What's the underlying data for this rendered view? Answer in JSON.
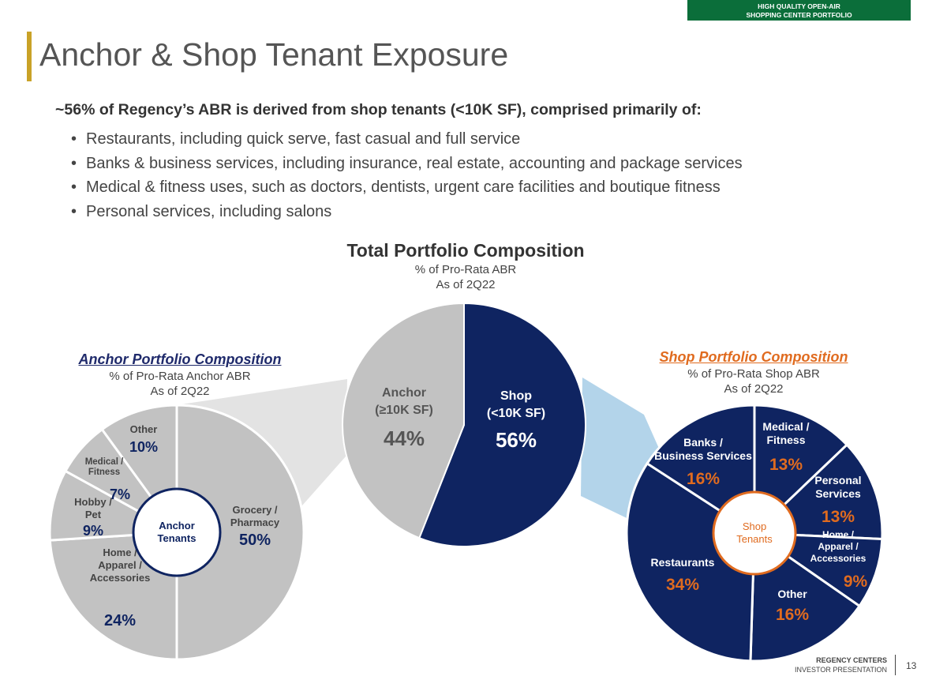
{
  "banner": {
    "line1": "HIGH QUALITY OPEN-AIR",
    "line2": "SHOPPING CENTER PORTFOLIO",
    "color": "#0b6e3a"
  },
  "header": {
    "title": "Anchor & Shop Tenant Exposure"
  },
  "intro": {
    "lead": "~56% of Regency’s ABR is derived from shop tenants (<10K SF), comprised primarily of:",
    "bullets": [
      "Restaurants, including quick serve, fast casual and full service",
      "Banks & business services, including insurance, real estate, accounting and package services",
      "Medical & fitness uses, such as doctors, dentists, urgent care facilities and boutique fitness",
      "Personal services, including salons"
    ]
  },
  "colors": {
    "navy": "#0f2461",
    "gray": "#c2c2c2",
    "orange": "#e06b1f",
    "connector_gray": "#e3e3e3",
    "connector_blue": "#b3d4ea"
  },
  "chart_data": [
    {
      "type": "pie",
      "title": "Total Portfolio Composition",
      "subtitle": [
        "% of Pro-Rata ABR",
        "As of 2Q22"
      ],
      "slices": [
        {
          "label": "Anchor",
          "sublabel": "(≥10K SF)",
          "value": 44,
          "display": "44%"
        },
        {
          "label": "Shop",
          "sublabel": "(<10K SF)",
          "value": 56,
          "display": "56%"
        }
      ]
    },
    {
      "type": "pie",
      "title": "Anchor Portfolio Composition",
      "subtitle": [
        "% of Pro-Rata Anchor ABR",
        "As of 2Q22"
      ],
      "center_label": [
        "Anchor",
        "Tenants"
      ],
      "slices": [
        {
          "label": "Grocery / Pharmacy",
          "value": 50,
          "display": "50%"
        },
        {
          "label": "Home / Apparel / Accessories",
          "value": 24,
          "display": "24%"
        },
        {
          "label": "Hobby / Pet",
          "value": 9,
          "display": "9%"
        },
        {
          "label": "Medical / Fitness",
          "value": 7,
          "display": "7%"
        },
        {
          "label": "Other",
          "value": 10,
          "display": "10%"
        }
      ]
    },
    {
      "type": "pie",
      "title": "Shop Portfolio Composition",
      "subtitle": [
        "% of Pro-Rata Shop ABR",
        "As of 2Q22"
      ],
      "center_label": [
        "Shop",
        "Tenants"
      ],
      "slices": [
        {
          "label": "Medical / Fitness",
          "value": 13,
          "display": "13%"
        },
        {
          "label": "Personal Services",
          "value": 13,
          "display": "13%"
        },
        {
          "label": "Home / Apparel / Accessories",
          "value": 9,
          "display": "9%"
        },
        {
          "label": "Other",
          "value": 16,
          "display": "16%"
        },
        {
          "label": "Restaurants",
          "value": 34,
          "display": "34%"
        },
        {
          "label": "Banks / Business Services",
          "value": 16,
          "display": "16%"
        }
      ]
    }
  ],
  "footer": {
    "company": "REGENCY CENTERS",
    "doc": "INVESTOR PRESENTATION",
    "page": "13"
  }
}
